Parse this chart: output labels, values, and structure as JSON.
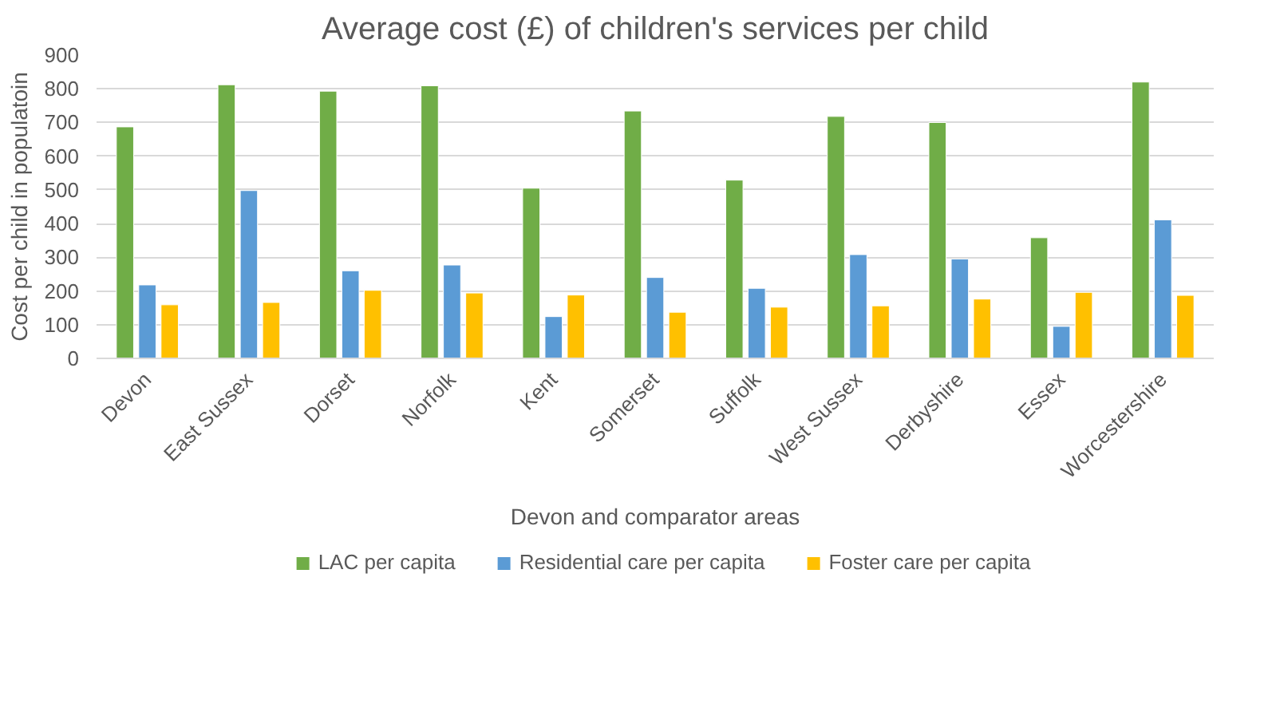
{
  "chart_data": {
    "type": "bar",
    "title": "Average cost (£) of children's services per child",
    "xlabel": "Devon and comparator areas",
    "ylabel": "Cost per child in populatoin",
    "categories": [
      "Devon",
      "East Sussex",
      "Dorset",
      "Norfolk",
      "Kent",
      "Somerset",
      "Suffolk",
      "West Sussex",
      "Derbyshire",
      "Essex",
      "Worcestershire"
    ],
    "series": [
      {
        "name": "LAC per capita",
        "color": "#70ad47",
        "values": [
          687,
          812,
          793,
          809,
          505,
          734,
          529,
          718,
          700,
          358,
          820
        ]
      },
      {
        "name": "Residential care per capita",
        "color": "#5b9bd5",
        "values": [
          218,
          498,
          260,
          277,
          124,
          240,
          208,
          308,
          295,
          95,
          411
        ]
      },
      {
        "name": "Foster care per capita",
        "color": "#ffc000",
        "values": [
          159,
          166,
          202,
          194,
          188,
          137,
          152,
          156,
          176,
          196,
          187
        ]
      }
    ],
    "ylim": [
      0,
      900
    ],
    "yticks": [
      0,
      100,
      200,
      300,
      400,
      500,
      600,
      700,
      800,
      900
    ],
    "grid": "y",
    "legend": "bottom"
  }
}
